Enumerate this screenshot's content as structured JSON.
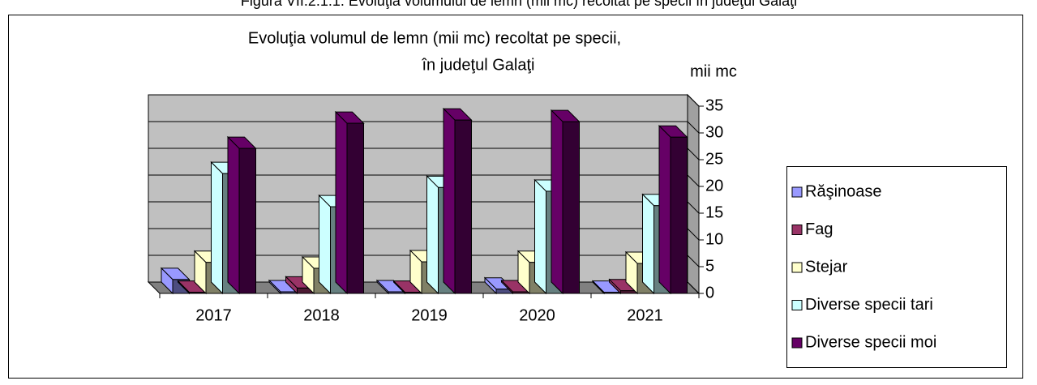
{
  "caption": "Figura VII.2.1.1. Evoluţia volumului de lemn (mii mc) recoltat pe specii în judeţul Galaţi",
  "chart_data": {
    "type": "bar3d",
    "title": [
      "Evoluţia volumul de lemn (mii mc) recoltat pe specii,",
      "în judeţul Galaţi"
    ],
    "y_axis_label": "mii mc",
    "categories": [
      "2017",
      "2018",
      "2019",
      "2020",
      "2021"
    ],
    "series": [
      {
        "name": "Răşinoase",
        "color": "#9999ff",
        "values": [
          2.6,
          0.3,
          0.3,
          0.8,
          0.2
        ]
      },
      {
        "name": "Fag",
        "color": "#993366",
        "values": [
          0.2,
          1.0,
          0.2,
          0.3,
          0.5
        ]
      },
      {
        "name": "Stejar",
        "color": "#ffffcc",
        "values": [
          5.8,
          4.7,
          5.9,
          5.8,
          5.6
        ]
      },
      {
        "name": "Diverse specii tari",
        "color": "#ccffff",
        "values": [
          22.4,
          16.2,
          19.8,
          19.1,
          16.4
        ]
      },
      {
        "name": "Diverse specii moi",
        "color": "#660066",
        "values": [
          27.1,
          31.8,
          32.4,
          32.1,
          29.2
        ]
      }
    ],
    "ylim": [
      0,
      35
    ],
    "yticks": [
      0,
      5,
      10,
      15,
      20,
      25,
      30,
      35
    ],
    "grid": true,
    "legend": "right"
  }
}
